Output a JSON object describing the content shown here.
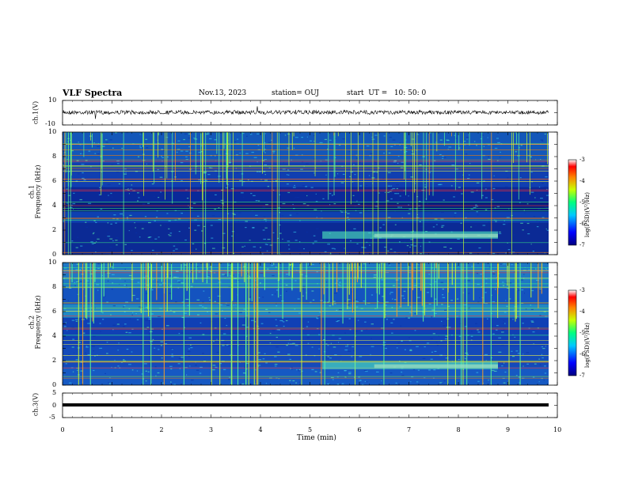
{
  "header": {
    "title": "VLF Spectra",
    "date": "Nov.13, 2023",
    "station": "station= OUJ",
    "start": "start  UT =   10: 50: 0"
  },
  "chart_data": [
    {
      "type": "line",
      "name": "ch1-waveform",
      "ylabel": "ch.1(V)",
      "ylim": [
        -10,
        10
      ],
      "yticks": [
        "10",
        "-10"
      ]
    },
    {
      "type": "heatmap",
      "name": "ch1-spectrogram",
      "ylabel_line1": "ch.1",
      "ylabel_line2": "Frequency (kHz)",
      "ylim": [
        0,
        10
      ],
      "yticks": [
        "0",
        "2",
        "4",
        "6",
        "8",
        "10"
      ],
      "colorbar": {
        "label": "log(PSD)(V²/Hz)",
        "range": [
          -7,
          -3
        ],
        "ticks": [
          "-3",
          "-4",
          "-5",
          "-6",
          "-7"
        ]
      }
    },
    {
      "type": "heatmap",
      "name": "ch2-spectrogram",
      "ylabel_line1": "ch.2",
      "ylabel_line2": "Frequency (kHz)",
      "ylim": [
        0,
        10
      ],
      "yticks": [
        "0",
        "2",
        "4",
        "6",
        "8",
        "10"
      ],
      "colorbar": {
        "label": "log(PSD)(V²/Hz)",
        "range": [
          -7,
          -3
        ],
        "ticks": [
          "-3",
          "-4",
          "-5",
          "-6",
          "-7"
        ]
      }
    },
    {
      "type": "line",
      "name": "ch3-waveform",
      "ylabel": "ch.3(V)",
      "ylim": [
        -5,
        5
      ],
      "yticks": [
        "5",
        "0",
        "-5"
      ],
      "value": -0.2
    }
  ],
  "xaxis": {
    "label": "Time (min)",
    "xlim": [
      0,
      10
    ],
    "ticks": [
      "0",
      "1",
      "2",
      "3",
      "4",
      "5",
      "6",
      "7",
      "8",
      "9",
      "10"
    ]
  }
}
